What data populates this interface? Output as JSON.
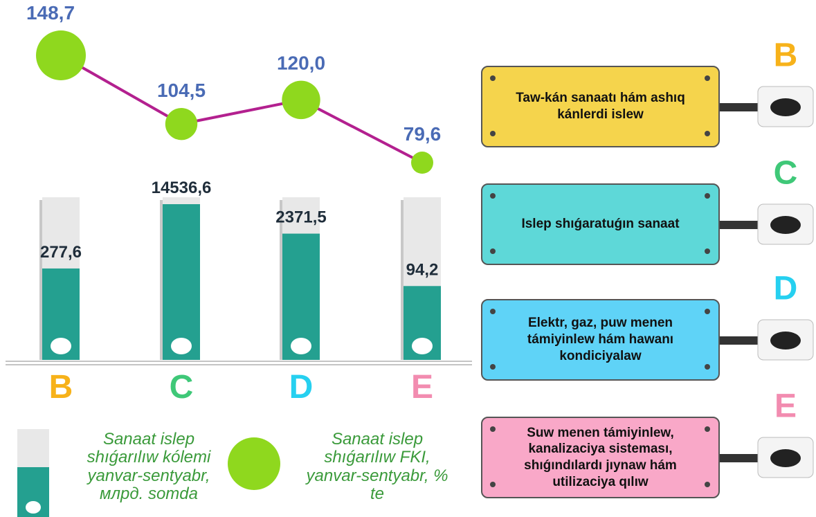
{
  "chart_data": {
    "type": "bar",
    "categories": [
      "B",
      "C",
      "D",
      "E"
    ],
    "category_colors": [
      "#f7b21a",
      "#3fc878",
      "#26d0f0",
      "#f28cb0"
    ],
    "bar_scale": "log",
    "series": [
      {
        "name": "Sanaat islep shıǵarılıw kólemi yanvar-sentyabr, млрд. somda",
        "type": "bar",
        "color": "#24a090",
        "values": [
          277.6,
          14536.6,
          2371.5,
          94.2
        ],
        "value_labels": [
          "277,6",
          "14536,6",
          "2371,5",
          "94,2"
        ]
      },
      {
        "name": "Sanaat islep shıǵarılıw FKI, yanvar-sentyabr, % te",
        "type": "line",
        "color": "#b3208f",
        "marker_color": "#8fd81e",
        "values": [
          148.7,
          104.5,
          120.0,
          79.6
        ],
        "value_labels": [
          "148,7",
          "104,5",
          "120,0",
          "79,6"
        ]
      }
    ]
  },
  "panels": [
    {
      "text": "Taw-kán sanaatı hám ashıq kánlerdi islew",
      "color": "#f5d44c"
    },
    {
      "text": "Islep shıǵaratuǵın sanaat",
      "color": "#5ed8d8"
    },
    {
      "text": "Elektr, gaz, puw menen támiyinlew hám hawanı kondiciyalaw",
      "color": "#5fd3f7"
    },
    {
      "text": "Suw menen támiyinlew, kanalizaciya sisteması, shıǵındılardı jıynaw hám utilizaciya qılıw",
      "color": "#f9a8c8"
    }
  ]
}
